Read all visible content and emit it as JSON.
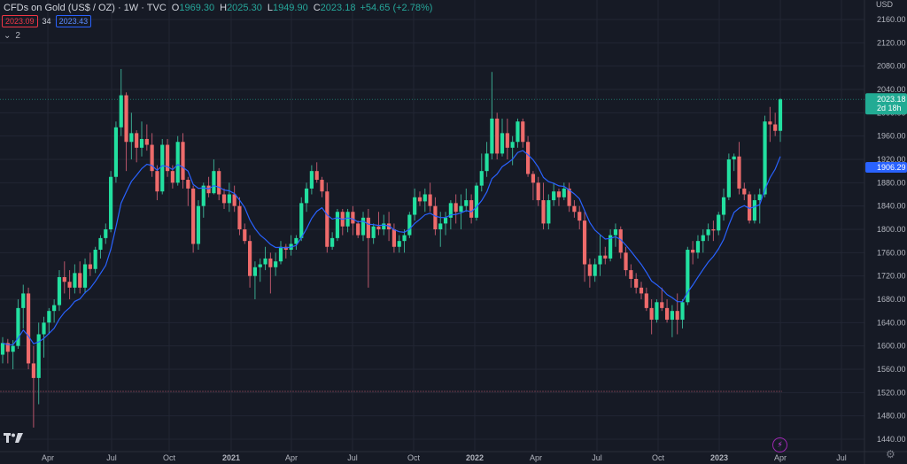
{
  "symbol": "CFDs on Gold (US$ / OZ) · 1W · TVC",
  "ohlc": {
    "o_label": "O",
    "o": "1969.30",
    "h_label": "H",
    "h": "2025.30",
    "l_label": "L",
    "l": "1949.90",
    "c_label": "C",
    "c": "2023.18",
    "change": "+54.65 (+2.78%)"
  },
  "indicators": {
    "price_box": "2023.09",
    "length": "34",
    "ma_box": "2023.43"
  },
  "collapse": {
    "chevron": "⌄",
    "count": "2"
  },
  "currency": "USD",
  "icons": {
    "logo": "tradingview-logo-icon",
    "lightning": "lightning-icon",
    "settings": "gear-icon",
    "chevron": "chevron-down-icon"
  },
  "colors": {
    "up": "#22e0a0",
    "down": "#ee6b6b",
    "ma": "#2962ff",
    "bg": "#161a25",
    "grid": "#222634"
  },
  "chart_data": {
    "type": "candlestick",
    "timeframe": "1W",
    "ylim": [
      1430,
      2180
    ],
    "y_ticks": [
      2160,
      2120,
      2080,
      2040,
      2000,
      1960,
      1920,
      1880,
      1840,
      1800,
      1760,
      1720,
      1680,
      1640,
      1600,
      1560,
      1520,
      1480,
      1440
    ],
    "y_tick_labels": [
      "2160.00",
      "2120.00",
      "2080.00",
      "2040.00",
      "2000.00",
      "1960.00",
      "1920.00",
      "1880.00",
      "1840.00",
      "1800.00",
      "1760.00",
      "1720.00",
      "1680.00",
      "1640.00",
      "1600.00",
      "1560.00",
      "1520.00",
      "1480.00",
      "1440.00"
    ],
    "x_labels": [
      "Apr",
      "Jul",
      "Oct",
      "2021",
      "Apr",
      "Jul",
      "Oct",
      "2022",
      "Apr",
      "Jul",
      "Oct",
      "2023",
      "Apr",
      "Jul"
    ],
    "price_label": {
      "value": "2023.18",
      "countdown": "2d 18h"
    },
    "ma_label": "1906.29",
    "horizontal_level": 1522,
    "candles": [
      {
        "o": 1585,
        "h": 1615,
        "l": 1570,
        "c": 1605
      },
      {
        "o": 1605,
        "h": 1612,
        "l": 1570,
        "c": 1590
      },
      {
        "o": 1590,
        "h": 1610,
        "l": 1560,
        "c": 1600
      },
      {
        "o": 1600,
        "h": 1680,
        "l": 1595,
        "c": 1665
      },
      {
        "o": 1665,
        "h": 1705,
        "l": 1630,
        "c": 1690
      },
      {
        "o": 1690,
        "h": 1700,
        "l": 1560,
        "c": 1570
      },
      {
        "o": 1570,
        "h": 1600,
        "l": 1460,
        "c": 1545
      },
      {
        "o": 1545,
        "h": 1640,
        "l": 1500,
        "c": 1620
      },
      {
        "o": 1620,
        "h": 1650,
        "l": 1580,
        "c": 1640
      },
      {
        "o": 1640,
        "h": 1665,
        "l": 1620,
        "c": 1660
      },
      {
        "o": 1660,
        "h": 1680,
        "l": 1640,
        "c": 1670
      },
      {
        "o": 1670,
        "h": 1730,
        "l": 1660,
        "c": 1718
      },
      {
        "o": 1718,
        "h": 1745,
        "l": 1690,
        "c": 1710
      },
      {
        "o": 1710,
        "h": 1730,
        "l": 1680,
        "c": 1700
      },
      {
        "o": 1700,
        "h": 1740,
        "l": 1690,
        "c": 1725
      },
      {
        "o": 1725,
        "h": 1745,
        "l": 1690,
        "c": 1700
      },
      {
        "o": 1700,
        "h": 1750,
        "l": 1690,
        "c": 1740
      },
      {
        "o": 1740,
        "h": 1760,
        "l": 1720,
        "c": 1732
      },
      {
        "o": 1732,
        "h": 1770,
        "l": 1725,
        "c": 1765
      },
      {
        "o": 1765,
        "h": 1790,
        "l": 1750,
        "c": 1785
      },
      {
        "o": 1785,
        "h": 1810,
        "l": 1775,
        "c": 1800
      },
      {
        "o": 1800,
        "h": 1900,
        "l": 1795,
        "c": 1890
      },
      {
        "o": 1890,
        "h": 1985,
        "l": 1880,
        "c": 1975
      },
      {
        "o": 1975,
        "h": 2075,
        "l": 1960,
        "c": 2030
      },
      {
        "o": 2030,
        "h": 2035,
        "l": 1900,
        "c": 1950
      },
      {
        "o": 1950,
        "h": 2000,
        "l": 1920,
        "c": 1965
      },
      {
        "o": 1965,
        "h": 1970,
        "l": 1915,
        "c": 1940
      },
      {
        "o": 1940,
        "h": 1985,
        "l": 1925,
        "c": 1955
      },
      {
        "o": 1955,
        "h": 1980,
        "l": 1935,
        "c": 1945
      },
      {
        "o": 1945,
        "h": 1965,
        "l": 1890,
        "c": 1900
      },
      {
        "o": 1900,
        "h": 1910,
        "l": 1850,
        "c": 1865
      },
      {
        "o": 1865,
        "h": 1955,
        "l": 1860,
        "c": 1945
      },
      {
        "o": 1945,
        "h": 1955,
        "l": 1890,
        "c": 1900
      },
      {
        "o": 1900,
        "h": 1910,
        "l": 1870,
        "c": 1880
      },
      {
        "o": 1880,
        "h": 1960,
        "l": 1875,
        "c": 1950
      },
      {
        "o": 1950,
        "h": 1965,
        "l": 1870,
        "c": 1885
      },
      {
        "o": 1885,
        "h": 1890,
        "l": 1840,
        "c": 1870
      },
      {
        "o": 1870,
        "h": 1875,
        "l": 1760,
        "c": 1775
      },
      {
        "o": 1775,
        "h": 1850,
        "l": 1765,
        "c": 1840
      },
      {
        "o": 1840,
        "h": 1880,
        "l": 1820,
        "c": 1875
      },
      {
        "o": 1875,
        "h": 1890,
        "l": 1855,
        "c": 1862
      },
      {
        "o": 1862,
        "h": 1920,
        "l": 1860,
        "c": 1900
      },
      {
        "o": 1900,
        "h": 1905,
        "l": 1850,
        "c": 1860
      },
      {
        "o": 1860,
        "h": 1870,
        "l": 1835,
        "c": 1845
      },
      {
        "o": 1845,
        "h": 1880,
        "l": 1830,
        "c": 1860
      },
      {
        "o": 1860,
        "h": 1875,
        "l": 1830,
        "c": 1840
      },
      {
        "o": 1840,
        "h": 1855,
        "l": 1790,
        "c": 1800
      },
      {
        "o": 1800,
        "h": 1810,
        "l": 1775,
        "c": 1780
      },
      {
        "o": 1780,
        "h": 1790,
        "l": 1700,
        "c": 1720
      },
      {
        "o": 1720,
        "h": 1745,
        "l": 1680,
        "c": 1735
      },
      {
        "o": 1735,
        "h": 1750,
        "l": 1710,
        "c": 1740
      },
      {
        "o": 1740,
        "h": 1770,
        "l": 1730,
        "c": 1750
      },
      {
        "o": 1750,
        "h": 1760,
        "l": 1690,
        "c": 1735
      },
      {
        "o": 1735,
        "h": 1760,
        "l": 1720,
        "c": 1745
      },
      {
        "o": 1745,
        "h": 1780,
        "l": 1740,
        "c": 1770
      },
      {
        "o": 1770,
        "h": 1775,
        "l": 1750,
        "c": 1765
      },
      {
        "o": 1765,
        "h": 1790,
        "l": 1755,
        "c": 1775
      },
      {
        "o": 1775,
        "h": 1790,
        "l": 1765,
        "c": 1785
      },
      {
        "o": 1785,
        "h": 1855,
        "l": 1780,
        "c": 1845
      },
      {
        "o": 1845,
        "h": 1880,
        "l": 1830,
        "c": 1870
      },
      {
        "o": 1870,
        "h": 1910,
        "l": 1860,
        "c": 1900
      },
      {
        "o": 1900,
        "h": 1915,
        "l": 1880,
        "c": 1885
      },
      {
        "o": 1885,
        "h": 1890,
        "l": 1855,
        "c": 1865
      },
      {
        "o": 1865,
        "h": 1880,
        "l": 1760,
        "c": 1770
      },
      {
        "o": 1770,
        "h": 1795,
        "l": 1765,
        "c": 1785
      },
      {
        "o": 1785,
        "h": 1835,
        "l": 1780,
        "c": 1830
      },
      {
        "o": 1830,
        "h": 1835,
        "l": 1790,
        "c": 1805
      },
      {
        "o": 1805,
        "h": 1835,
        "l": 1795,
        "c": 1830
      },
      {
        "o": 1830,
        "h": 1840,
        "l": 1790,
        "c": 1810
      },
      {
        "o": 1810,
        "h": 1815,
        "l": 1785,
        "c": 1790
      },
      {
        "o": 1790,
        "h": 1830,
        "l": 1780,
        "c": 1820
      },
      {
        "o": 1820,
        "h": 1835,
        "l": 1700,
        "c": 1785
      },
      {
        "o": 1785,
        "h": 1810,
        "l": 1775,
        "c": 1805
      },
      {
        "o": 1805,
        "h": 1830,
        "l": 1790,
        "c": 1800
      },
      {
        "o": 1800,
        "h": 1825,
        "l": 1790,
        "c": 1810
      },
      {
        "o": 1810,
        "h": 1830,
        "l": 1780,
        "c": 1800
      },
      {
        "o": 1800,
        "h": 1810,
        "l": 1760,
        "c": 1770
      },
      {
        "o": 1770,
        "h": 1790,
        "l": 1760,
        "c": 1780
      },
      {
        "o": 1780,
        "h": 1800,
        "l": 1760,
        "c": 1790
      },
      {
        "o": 1790,
        "h": 1830,
        "l": 1785,
        "c": 1825
      },
      {
        "o": 1825,
        "h": 1870,
        "l": 1815,
        "c": 1855
      },
      {
        "o": 1855,
        "h": 1865,
        "l": 1840,
        "c": 1848
      },
      {
        "o": 1848,
        "h": 1870,
        "l": 1830,
        "c": 1860
      },
      {
        "o": 1860,
        "h": 1880,
        "l": 1830,
        "c": 1840
      },
      {
        "o": 1840,
        "h": 1855,
        "l": 1790,
        "c": 1800
      },
      {
        "o": 1800,
        "h": 1830,
        "l": 1770,
        "c": 1810
      },
      {
        "o": 1810,
        "h": 1830,
        "l": 1790,
        "c": 1820
      },
      {
        "o": 1820,
        "h": 1850,
        "l": 1800,
        "c": 1845
      },
      {
        "o": 1845,
        "h": 1860,
        "l": 1810,
        "c": 1830
      },
      {
        "o": 1830,
        "h": 1860,
        "l": 1800,
        "c": 1840
      },
      {
        "o": 1840,
        "h": 1870,
        "l": 1830,
        "c": 1850
      },
      {
        "o": 1850,
        "h": 1860,
        "l": 1810,
        "c": 1820
      },
      {
        "o": 1820,
        "h": 1880,
        "l": 1815,
        "c": 1875
      },
      {
        "o": 1875,
        "h": 1930,
        "l": 1865,
        "c": 1900
      },
      {
        "o": 1900,
        "h": 1950,
        "l": 1890,
        "c": 1930
      },
      {
        "o": 1930,
        "h": 2070,
        "l": 1920,
        "c": 1990
      },
      {
        "o": 1990,
        "h": 2000,
        "l": 1920,
        "c": 1930
      },
      {
        "o": 1930,
        "h": 1990,
        "l": 1925,
        "c": 1965
      },
      {
        "o": 1965,
        "h": 1990,
        "l": 1920,
        "c": 1940
      },
      {
        "o": 1940,
        "h": 1960,
        "l": 1910,
        "c": 1950
      },
      {
        "o": 1950,
        "h": 1990,
        "l": 1940,
        "c": 1985
      },
      {
        "o": 1985,
        "h": 1990,
        "l": 1940,
        "c": 1950
      },
      {
        "o": 1950,
        "h": 1960,
        "l": 1890,
        "c": 1895
      },
      {
        "o": 1895,
        "h": 1900,
        "l": 1850,
        "c": 1880
      },
      {
        "o": 1880,
        "h": 1890,
        "l": 1840,
        "c": 1850
      },
      {
        "o": 1850,
        "h": 1880,
        "l": 1800,
        "c": 1810
      },
      {
        "o": 1810,
        "h": 1860,
        "l": 1800,
        "c": 1850
      },
      {
        "o": 1850,
        "h": 1880,
        "l": 1840,
        "c": 1865
      },
      {
        "o": 1865,
        "h": 1870,
        "l": 1840,
        "c": 1855
      },
      {
        "o": 1855,
        "h": 1880,
        "l": 1850,
        "c": 1870
      },
      {
        "o": 1870,
        "h": 1880,
        "l": 1830,
        "c": 1840
      },
      {
        "o": 1840,
        "h": 1850,
        "l": 1820,
        "c": 1830
      },
      {
        "o": 1830,
        "h": 1840,
        "l": 1800,
        "c": 1815
      },
      {
        "o": 1815,
        "h": 1830,
        "l": 1710,
        "c": 1740
      },
      {
        "o": 1740,
        "h": 1750,
        "l": 1700,
        "c": 1720
      },
      {
        "o": 1720,
        "h": 1750,
        "l": 1710,
        "c": 1740
      },
      {
        "o": 1740,
        "h": 1790,
        "l": 1720,
        "c": 1755
      },
      {
        "o": 1755,
        "h": 1770,
        "l": 1740,
        "c": 1750
      },
      {
        "o": 1750,
        "h": 1800,
        "l": 1745,
        "c": 1790
      },
      {
        "o": 1790,
        "h": 1810,
        "l": 1770,
        "c": 1800
      },
      {
        "o": 1800,
        "h": 1805,
        "l": 1750,
        "c": 1760
      },
      {
        "o": 1760,
        "h": 1770,
        "l": 1720,
        "c": 1730
      },
      {
        "o": 1730,
        "h": 1740,
        "l": 1700,
        "c": 1715
      },
      {
        "o": 1715,
        "h": 1725,
        "l": 1690,
        "c": 1700
      },
      {
        "o": 1700,
        "h": 1710,
        "l": 1680,
        "c": 1690
      },
      {
        "o": 1690,
        "h": 1700,
        "l": 1660,
        "c": 1665
      },
      {
        "o": 1665,
        "h": 1680,
        "l": 1620,
        "c": 1645
      },
      {
        "o": 1645,
        "h": 1680,
        "l": 1640,
        "c": 1675
      },
      {
        "o": 1675,
        "h": 1700,
        "l": 1660,
        "c": 1665
      },
      {
        "o": 1665,
        "h": 1680,
        "l": 1640,
        "c": 1645
      },
      {
        "o": 1645,
        "h": 1670,
        "l": 1615,
        "c": 1660
      },
      {
        "o": 1660,
        "h": 1690,
        "l": 1620,
        "c": 1645
      },
      {
        "o": 1645,
        "h": 1680,
        "l": 1630,
        "c": 1675
      },
      {
        "o": 1675,
        "h": 1770,
        "l": 1670,
        "c": 1765
      },
      {
        "o": 1765,
        "h": 1780,
        "l": 1740,
        "c": 1760
      },
      {
        "o": 1760,
        "h": 1790,
        "l": 1750,
        "c": 1780
      },
      {
        "o": 1780,
        "h": 1800,
        "l": 1760,
        "c": 1790
      },
      {
        "o": 1790,
        "h": 1810,
        "l": 1780,
        "c": 1800
      },
      {
        "o": 1800,
        "h": 1815,
        "l": 1780,
        "c": 1798
      },
      {
        "o": 1798,
        "h": 1830,
        "l": 1790,
        "c": 1825
      },
      {
        "o": 1825,
        "h": 1870,
        "l": 1815,
        "c": 1855
      },
      {
        "o": 1855,
        "h": 1930,
        "l": 1850,
        "c": 1920
      },
      {
        "o": 1920,
        "h": 1930,
        "l": 1900,
        "c": 1925
      },
      {
        "o": 1925,
        "h": 1950,
        "l": 1860,
        "c": 1870
      },
      {
        "o": 1870,
        "h": 1880,
        "l": 1850,
        "c": 1860
      },
      {
        "o": 1860,
        "h": 1865,
        "l": 1810,
        "c": 1815
      },
      {
        "o": 1815,
        "h": 1860,
        "l": 1810,
        "c": 1850
      },
      {
        "o": 1850,
        "h": 1870,
        "l": 1810,
        "c": 1860
      },
      {
        "o": 1860,
        "h": 1995,
        "l": 1855,
        "c": 1985
      },
      {
        "o": 1985,
        "h": 2010,
        "l": 1950,
        "c": 1980
      },
      {
        "o": 1980,
        "h": 2000,
        "l": 1960,
        "c": 1969
      },
      {
        "o": 1969,
        "h": 2025,
        "l": 1950,
        "c": 2023
      }
    ]
  }
}
